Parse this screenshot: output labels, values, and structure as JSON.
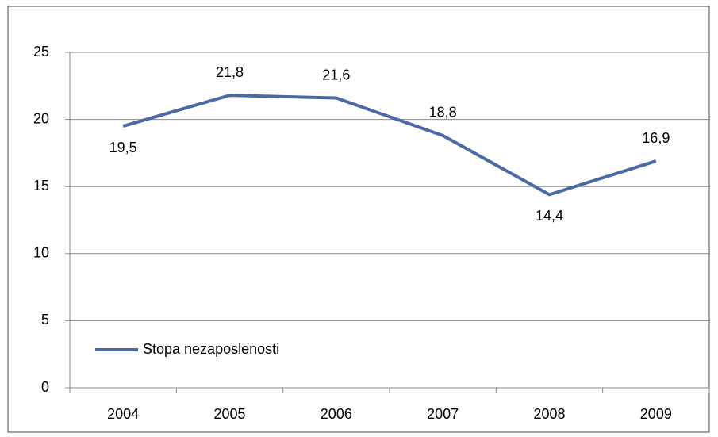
{
  "chart_data": {
    "type": "line",
    "categories": [
      "2004",
      "2005",
      "2006",
      "2007",
      "2008",
      "2009"
    ],
    "series": [
      {
        "name": "Stopa nezaposlenosti",
        "color": "#4a6aa5",
        "values": [
          19.5,
          21.8,
          21.6,
          18.8,
          14.4,
          16.9
        ],
        "value_labels": [
          "19,5",
          "21,8",
          "21,6",
          "18,8",
          "14,4",
          "16,9"
        ]
      }
    ],
    "ylim": [
      0,
      25
    ],
    "yticks": [
      0,
      5,
      10,
      15,
      20,
      25
    ],
    "grid": true,
    "legend": "bottom-left"
  }
}
